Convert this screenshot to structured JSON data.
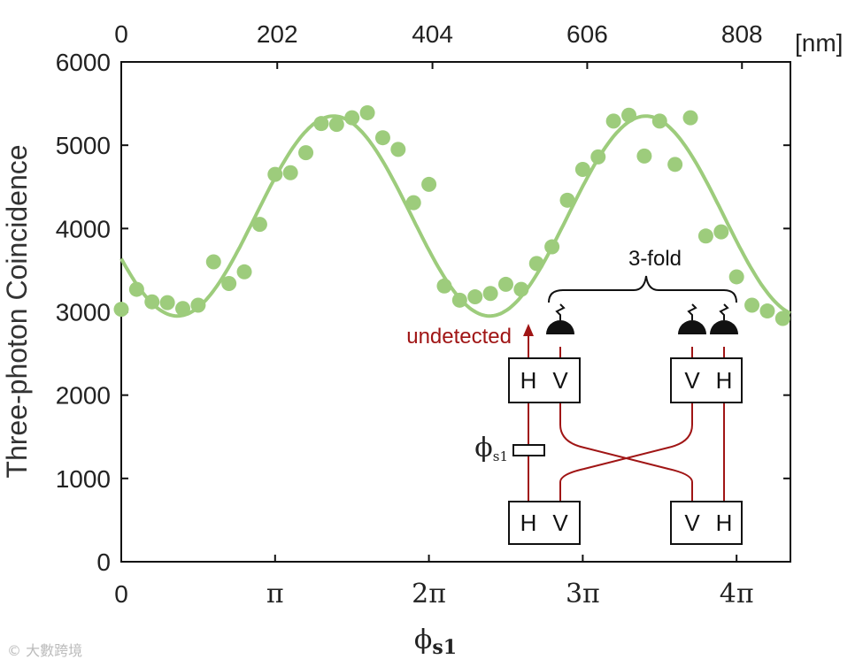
{
  "chart_data": {
    "type": "scatter",
    "title": "",
    "ylabel": "Three-photon Coincidence",
    "xlabel": "ϕ",
    "xlabel_sub": "s1",
    "ylim": [
      0,
      6000
    ],
    "xlim": [
      0,
      4.35
    ],
    "x_unit": "pi",
    "yticks": [
      0,
      1000,
      2000,
      3000,
      4000,
      5000,
      6000
    ],
    "xticks": [
      {
        "value": 0,
        "label": "0"
      },
      {
        "value": 1,
        "label": "π"
      },
      {
        "value": 2,
        "label": "2π"
      },
      {
        "value": 3,
        "label": "3π"
      },
      {
        "value": 4,
        "label": "4π"
      }
    ],
    "top_axis": {
      "unit_label": "[nm]",
      "ticks": [
        {
          "value": 0,
          "label": "0"
        },
        {
          "value": 1.014,
          "label": "202"
        },
        {
          "value": 2.023,
          "label": "404"
        },
        {
          "value": 3.029,
          "label": "606"
        },
        {
          "value": 4.035,
          "label": "808"
        }
      ]
    },
    "colors": {
      "data": "#9dcc7c",
      "fit": "#9dcc7c",
      "beam": "#a01515",
      "axis": "#111111"
    },
    "series": [
      {
        "kind": "points",
        "x": [
          0.0,
          0.1,
          0.2,
          0.3,
          0.4,
          0.5,
          0.6,
          0.7,
          0.8,
          0.9,
          1.0,
          1.1,
          1.2,
          1.3,
          1.4,
          1.5,
          1.6,
          1.7,
          1.8,
          1.9,
          2.0,
          2.1,
          2.2,
          2.3,
          2.4,
          2.5,
          2.6,
          2.7,
          2.8,
          2.9,
          3.0,
          3.1,
          3.2,
          3.3,
          3.4,
          3.5,
          3.6,
          3.7,
          3.8,
          3.9,
          4.0,
          4.1,
          4.2,
          4.3
        ],
        "y": [
          3030,
          3270,
          3120,
          3110,
          3040,
          3080,
          3600,
          3340,
          3480,
          4050,
          4650,
          4670,
          4910,
          5260,
          5250,
          5330,
          5390,
          5090,
          4950,
          4310,
          4530,
          3310,
          3140,
          3180,
          3220,
          3330,
          3270,
          3580,
          3780,
          4340,
          4710,
          4860,
          5290,
          5360,
          4870,
          5290,
          4770,
          5330,
          3910,
          3960,
          3420,
          3080,
          3010,
          2920
        ]
      },
      {
        "kind": "fit",
        "model": "offset + amplitude * cos(2*pi*(x - phase)/period)",
        "offset": 4150,
        "amplitude": 1200,
        "period": 2.03,
        "phase": 1.38
      }
    ],
    "annotations": {
      "undetected": "undetected",
      "three_fold": "3-fold",
      "phase": "ϕ",
      "phase_sub": "s1",
      "boxes": [
        {
          "left": "H",
          "right": "V"
        },
        {
          "left": "V",
          "right": "H"
        },
        {
          "left": "H",
          "right": "V"
        },
        {
          "left": "V",
          "right": "H"
        }
      ]
    }
  },
  "watermark": "© 大數跨境"
}
